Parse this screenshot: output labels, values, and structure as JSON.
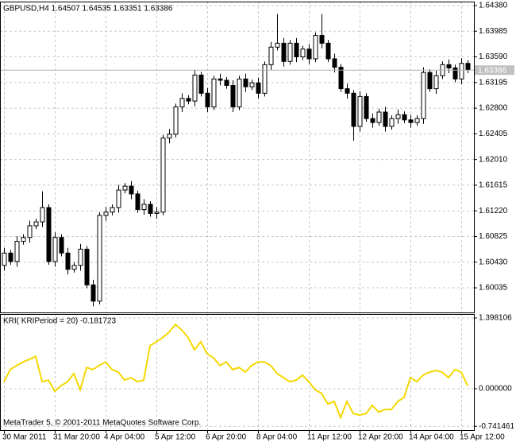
{
  "chart_data": [
    {
      "type": "candlestick",
      "title": "GBPUSD,H4  1.64507 1.64535 1.63351 1.63386",
      "categories": [
        "30 Mar 2011",
        null,
        null,
        null,
        null,
        null,
        null,
        null,
        "31 Mar 20:00",
        null,
        null,
        null,
        null,
        null,
        null,
        null,
        "4 Apr 04:00",
        null,
        null,
        null,
        null,
        null,
        null,
        null,
        "5 Apr 12:00",
        null,
        null,
        null,
        null,
        null,
        null,
        null,
        "6 Apr 20:00",
        null,
        null,
        null,
        null,
        null,
        null,
        null,
        "8 Apr 04:00",
        null,
        null,
        null,
        null,
        null,
        null,
        null,
        "11 Apr 12:00",
        null,
        null,
        null,
        null,
        null,
        null,
        null,
        "12 Apr 20:00",
        null,
        null,
        null,
        null,
        null,
        null,
        null,
        "14 Apr 04:00",
        null,
        null,
        null,
        null,
        null,
        null,
        null,
        "15 Apr 12:00",
        null
      ],
      "open": [
        1.6038,
        1.6057,
        1.6044,
        1.6075,
        1.6081,
        1.6099,
        1.6105,
        1.6127,
        1.6044,
        1.6081,
        1.6057,
        1.6032,
        1.6038,
        1.6063,
        1.6008,
        1.5983,
        1.6115,
        1.612,
        1.6127,
        1.6154,
        1.616,
        1.6148,
        1.6124,
        1.6132,
        1.6118,
        1.612,
        1.6234,
        1.624,
        1.6282,
        1.6295,
        1.6291,
        1.6331,
        1.6303,
        1.6282,
        1.6325,
        1.6323,
        1.6315,
        1.6282,
        1.6325,
        1.6313,
        1.6319,
        1.6303,
        1.6347,
        1.6374,
        1.638,
        1.6352,
        1.638,
        1.6359,
        1.6371,
        1.6356,
        1.6392,
        1.638,
        1.6356,
        1.6343,
        1.631,
        1.6303,
        1.6252,
        1.6298,
        1.6264,
        1.6258,
        1.6274,
        1.6252,
        1.6264,
        1.627,
        1.6262,
        1.6258,
        1.6264,
        1.6335,
        1.631,
        1.633,
        1.6347,
        1.6342,
        1.6325,
        1.6349
      ],
      "high": [
        1.6065,
        1.6062,
        1.6083,
        1.6086,
        1.6107,
        1.611,
        1.6152,
        1.6132,
        1.6089,
        1.6086,
        1.6065,
        1.6043,
        1.6071,
        1.6068,
        1.6016,
        1.612,
        1.6128,
        1.6132,
        1.6162,
        1.6165,
        1.6168,
        1.6153,
        1.614,
        1.6137,
        1.6128,
        1.6239,
        1.6248,
        1.6287,
        1.6303,
        1.63,
        1.6339,
        1.6336,
        1.6311,
        1.633,
        1.6333,
        1.6328,
        1.6323,
        1.633,
        1.6333,
        1.6324,
        1.6327,
        1.6352,
        1.6382,
        1.6425,
        1.6388,
        1.6385,
        1.6388,
        1.6376,
        1.6379,
        1.6397,
        1.6425,
        1.6385,
        1.6364,
        1.6348,
        1.6318,
        1.6308,
        1.6306,
        1.6303,
        1.6272,
        1.6279,
        1.6282,
        1.6269,
        1.6278,
        1.6275,
        1.627,
        1.6269,
        1.6343,
        1.634,
        1.6338,
        1.6352,
        1.6355,
        1.6347,
        1.6357,
        1.6354
      ],
      "low": [
        1.603,
        1.6039,
        1.6036,
        1.607,
        1.6073,
        1.6094,
        1.6097,
        1.6039,
        1.6036,
        1.6052,
        1.6024,
        1.6027,
        1.603,
        1.6003,
        1.5975,
        1.5978,
        1.6107,
        1.6115,
        1.6119,
        1.6149,
        1.614,
        1.6119,
        1.6116,
        1.6113,
        1.611,
        1.6115,
        1.6226,
        1.6235,
        1.6274,
        1.6286,
        1.6283,
        1.6298,
        1.6274,
        1.6277,
        1.6315,
        1.631,
        1.6274,
        1.6277,
        1.6305,
        1.6308,
        1.6295,
        1.6298,
        1.6339,
        1.6369,
        1.6344,
        1.6347,
        1.6351,
        1.6354,
        1.6348,
        1.6351,
        1.6372,
        1.6351,
        1.6335,
        1.6305,
        1.6295,
        1.623,
        1.6244,
        1.6259,
        1.625,
        1.6253,
        1.6244,
        1.6247,
        1.6256,
        1.6257,
        1.625,
        1.6253,
        1.6256,
        1.6305,
        1.6302,
        1.6325,
        1.6334,
        1.632,
        1.6317,
        1.6334
      ],
      "close": [
        1.6057,
        1.6044,
        1.6075,
        1.6081,
        1.6099,
        1.6105,
        1.6127,
        1.6044,
        1.6081,
        1.6057,
        1.6032,
        1.6038,
        1.6063,
        1.6008,
        1.5983,
        1.6115,
        1.612,
        1.6127,
        1.6154,
        1.616,
        1.6148,
        1.6124,
        1.6132,
        1.6118,
        1.612,
        1.6234,
        1.624,
        1.6282,
        1.6295,
        1.6291,
        1.6331,
        1.6303,
        1.6282,
        1.6325,
        1.6323,
        1.6315,
        1.6282,
        1.6325,
        1.6313,
        1.6319,
        1.6303,
        1.6347,
        1.6374,
        1.638,
        1.6352,
        1.638,
        1.6359,
        1.6371,
        1.6356,
        1.6392,
        1.638,
        1.6356,
        1.6343,
        1.631,
        1.6303,
        1.6252,
        1.6298,
        1.6264,
        1.6258,
        1.6274,
        1.6252,
        1.6264,
        1.627,
        1.6262,
        1.6258,
        1.6264,
        1.6335,
        1.631,
        1.633,
        1.6347,
        1.6342,
        1.6325,
        1.6349,
        1.6339
      ],
      "up_color": "#ffffff",
      "down_color": "#000000",
      "ylim": [
        1.59656,
        1.64441
      ],
      "yticks": [
        {
          "value": 1.6438,
          "label": "1.64380"
        },
        {
          "value": 1.63985,
          "label": "1.63985"
        },
        {
          "value": 1.6359,
          "label": "1.63590"
        },
        {
          "value": 1.63195,
          "label": "1.63195"
        },
        {
          "value": 1.628,
          "label": "1.62800"
        },
        {
          "value": 1.62405,
          "label": "1.62405"
        },
        {
          "value": 1.6201,
          "label": "1.62010"
        },
        {
          "value": 1.61615,
          "label": "1.61615"
        },
        {
          "value": 1.6122,
          "label": "1.61220"
        },
        {
          "value": 1.60825,
          "label": "1.60825"
        },
        {
          "value": 1.6043,
          "label": "1.60430"
        },
        {
          "value": 1.60035,
          "label": "1.60035"
        }
      ],
      "current_price": 1.63386,
      "grid": true
    },
    {
      "type": "line",
      "title": "KRI( KRIPeriod = 20) -0.181723",
      "annotation": "MetaTrader 5, © 2001-2011 MetaQuotes Software Corp.",
      "series": [
        {
          "color": "#f5d800",
          "values": [
            0.14,
            0.38,
            0.46,
            0.53,
            0.58,
            0.64,
            0.14,
            0.17,
            -0.05,
            0.06,
            0.14,
            0.3,
            -0.02,
            0.42,
            0.38,
            0.46,
            0.53,
            0.38,
            0.33,
            0.17,
            0.22,
            0.14,
            0.17,
            0.85,
            0.93,
            1.01,
            1.12,
            1.27,
            1.16,
            1.01,
            0.77,
            0.93,
            0.69,
            0.61,
            0.46,
            0.53,
            0.38,
            0.42,
            0.33,
            0.46,
            0.53,
            0.53,
            0.46,
            0.3,
            0.22,
            0.14,
            0.17,
            0.27,
            0.14,
            -0.02,
            -0.09,
            -0.3,
            -0.25,
            -0.57,
            -0.25,
            -0.49,
            -0.52,
            -0.49,
            -0.33,
            -0.46,
            -0.41,
            -0.41,
            -0.25,
            -0.17,
            0.22,
            0.14,
            0.27,
            0.33,
            0.36,
            0.33,
            0.22,
            0.38,
            0.33,
            0.06
          ]
        }
      ],
      "ylim": [
        -0.8168,
        1.4766
      ],
      "yticks": [
        {
          "value": 1.398106,
          "label": "1.398106"
        },
        {
          "value": 0,
          "label": "0.000000"
        },
        {
          "value": -0.741461,
          "label": "-0.741461"
        }
      ],
      "grid": true
    }
  ]
}
